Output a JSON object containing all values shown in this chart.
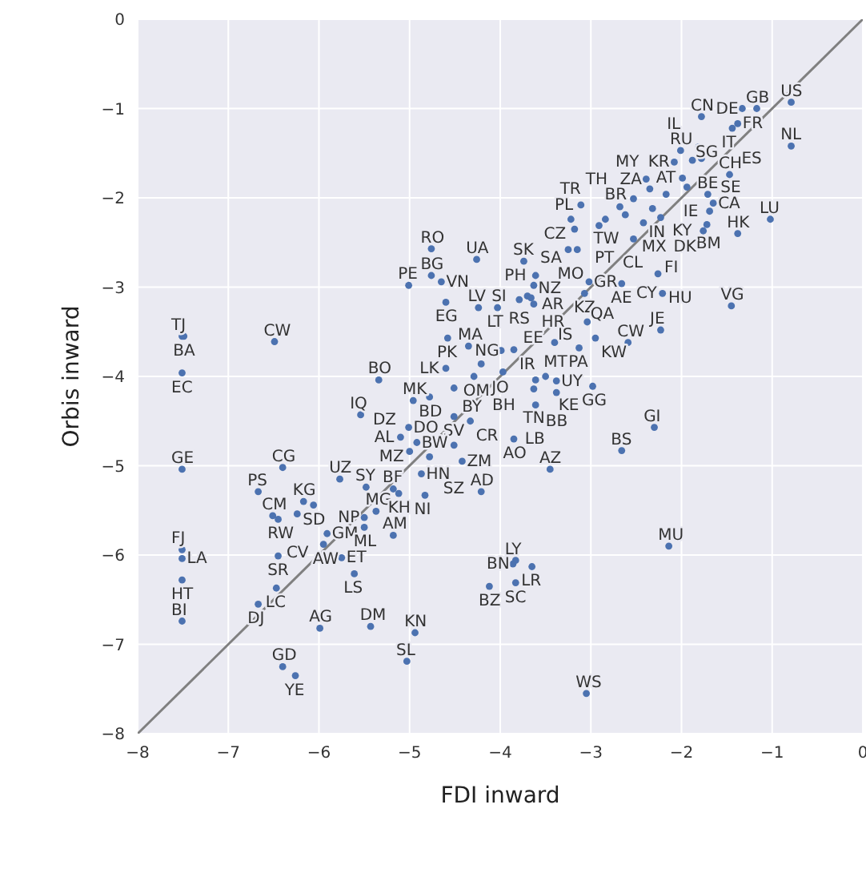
{
  "chart_data": {
    "type": "scatter",
    "xlabel": "FDI inward",
    "ylabel": "Orbis inward",
    "xlim": [
      -8,
      0
    ],
    "ylim": [
      -8,
      0
    ],
    "xticks": [
      -8,
      -7,
      -6,
      -5,
      -4,
      -3,
      -2,
      -1,
      0
    ],
    "yticks": [
      -8,
      -7,
      -6,
      -5,
      -4,
      -3,
      -2,
      -1,
      0
    ],
    "grid": true,
    "legend": false,
    "series": [
      {
        "type": "scatter",
        "marker": "circle",
        "color": "#4c72b0",
        "x": [
          -0.79,
          -1.17,
          -1.33,
          -1.78,
          -1.38,
          -1.44,
          -0.79,
          -1.47,
          -1.02,
          -1.38,
          -1.71,
          -1.65,
          -1.69,
          -1.72,
          -1.76,
          -2.01,
          -1.81,
          -2.08,
          -1.88,
          -1.78,
          -1.99,
          -1.94,
          -2.39,
          -2.35,
          -2.17,
          -2.53,
          -2.32,
          -2.68,
          -2.62,
          -2.84,
          -2.42,
          -2.23,
          -2.53,
          -2.66,
          -2.26,
          -2.21,
          -1.45,
          -2.23,
          -2.59,
          -3.11,
          -3.22,
          -3.18,
          -2.91,
          -3.25,
          -3.15,
          -3.02,
          -3.07,
          -3.74,
          -3.61,
          -4.26,
          -4.76,
          -4.76,
          -4.65,
          -5.01,
          -4.6,
          -4.24,
          -4.03,
          -3.79,
          -3.7,
          -3.63,
          -3.66,
          -3.63,
          -4.58,
          -4.35,
          -3.99,
          -3.85,
          -4.21,
          -4.6,
          -4.29,
          -3.97,
          -3.61,
          -3.5,
          -3.63,
          -3.38,
          -3.38,
          -3.61,
          -3.4,
          -3.13,
          -2.95,
          -3.04,
          -2.98,
          -4.51,
          -5.34,
          -2.3,
          -2.66,
          -3.85,
          -3.45,
          -4.21,
          -4.42,
          -2.14,
          -3.83,
          -3.86,
          -3.65,
          -4.12,
          -3.83,
          -3.05,
          -7.51,
          -7.49,
          -6.49,
          -7.51,
          -7.51,
          -7.51,
          -7.51,
          -7.51,
          -7.51,
          -6.4,
          -6.67,
          -5.77,
          -5.48,
          -6.17,
          -6.06,
          -6.51,
          -6.45,
          -6.24,
          -5.91,
          -5.95,
          -5.75,
          -6.45,
          -5.61,
          -6.47,
          -6.67,
          -5.99,
          -5.43,
          -6.4,
          -6.26,
          -4.94,
          -5.03,
          -5.5,
          -5.37,
          -5.5,
          -5.18,
          -4.83,
          -5.12,
          -5.18,
          -4.87,
          -5.54,
          -4.96,
          -4.78,
          -4.51,
          -4.33,
          -5.1,
          -5.01,
          -4.92,
          -4.51,
          -4.78,
          -5.0
        ],
        "values": [
          -0.93,
          -1.0,
          -1.0,
          -1.09,
          -1.17,
          -1.22,
          -1.42,
          -1.74,
          -2.24,
          -2.4,
          -1.96,
          -2.06,
          -2.15,
          -2.3,
          -2.37,
          -1.47,
          -1.43,
          -1.6,
          -1.58,
          -1.56,
          -1.78,
          -1.88,
          -1.79,
          -1.9,
          -1.96,
          -2.01,
          -2.12,
          -2.1,
          -2.19,
          -2.24,
          -2.28,
          -2.22,
          -2.46,
          -2.96,
          -2.85,
          -3.07,
          -3.21,
          -3.48,
          -3.62,
          -2.08,
          -2.24,
          -2.35,
          -2.31,
          -2.58,
          -2.58,
          -2.94,
          -3.07,
          -2.71,
          -2.87,
          -2.69,
          -2.57,
          -2.87,
          -2.94,
          -2.98,
          -3.17,
          -3.23,
          -3.23,
          -3.14,
          -3.1,
          -2.98,
          -3.12,
          -3.19,
          -3.57,
          -3.66,
          -3.71,
          -3.7,
          -3.86,
          -3.91,
          -4.0,
          -3.95,
          -4.04,
          -4.0,
          -4.14,
          -4.05,
          -4.18,
          -4.32,
          -3.62,
          -3.68,
          -3.57,
          -3.39,
          -4.11,
          -4.13,
          -4.04,
          -4.57,
          -4.83,
          -4.7,
          -5.04,
          -5.29,
          -4.95,
          -5.9,
          -6.06,
          -6.1,
          -6.13,
          -6.35,
          -6.31,
          -7.55,
          -3.55,
          -3.55,
          -3.61,
          -3.96,
          -5.04,
          -5.94,
          -6.04,
          -6.28,
          -6.74,
          -5.02,
          -5.29,
          -5.15,
          -5.24,
          -5.4,
          -5.44,
          -5.56,
          -5.6,
          -5.54,
          -5.76,
          -5.88,
          -6.03,
          -6.01,
          -6.21,
          -6.37,
          -6.55,
          -6.82,
          -6.8,
          -7.25,
          -7.35,
          -6.87,
          -7.19,
          -5.58,
          -5.51,
          -5.69,
          -5.78,
          -5.33,
          -5.31,
          -5.26,
          -5.09,
          -4.43,
          -4.27,
          -4.23,
          -4.45,
          -4.5,
          -4.68,
          -4.57,
          -4.74,
          -4.77,
          -4.9,
          -4.84
        ]
      },
      {
        "type": "line",
        "marker": "none",
        "color": "#808080",
        "x": [
          -8,
          0
        ],
        "values": [
          -8,
          0
        ]
      }
    ],
    "annotations": [
      {
        "text": "US",
        "x": -0.79,
        "y": -0.93
      },
      {
        "text": "GB",
        "x": -1.17,
        "y": -1.0
      },
      {
        "text": "DE",
        "x": -1.33,
        "y": -1.0
      },
      {
        "text": "CN",
        "x": -1.78,
        "y": -1.09
      },
      {
        "text": "FR",
        "x": -1.38,
        "y": -1.17
      },
      {
        "text": "IT",
        "x": -1.44,
        "y": -1.22
      },
      {
        "text": "NL",
        "x": -0.79,
        "y": -1.42
      },
      {
        "text": "CH",
        "x": -1.47,
        "y": -1.74
      },
      {
        "text": "LU",
        "x": -1.02,
        "y": -2.24
      },
      {
        "text": "HK",
        "x": -1.38,
        "y": -2.4
      },
      {
        "text": "BE",
        "x": -1.71,
        "y": -1.96
      },
      {
        "text": "CA",
        "x": -1.65,
        "y": -2.06
      },
      {
        "text": "IE",
        "x": -1.69,
        "y": -2.15
      },
      {
        "text": "BM",
        "x": -1.72,
        "y": -2.3
      },
      {
        "text": "KY",
        "x": -1.76,
        "y": -2.37
      },
      {
        "text": "RU",
        "x": -2.01,
        "y": -1.47
      },
      {
        "text": "IL",
        "x": -1.81,
        "y": -1.43
      },
      {
        "text": "KR",
        "x": -2.08,
        "y": -1.6
      },
      {
        "text": "SG",
        "x": -1.88,
        "y": -1.58
      },
      {
        "text": "ES",
        "x": -1.78,
        "y": -1.56
      },
      {
        "text": "AT",
        "x": -1.99,
        "y": -1.78
      },
      {
        "text": "SE",
        "x": -1.94,
        "y": -1.88
      },
      {
        "text": "ZA",
        "x": -2.39,
        "y": -1.79
      },
      {
        "text": "MY",
        "x": -2.35,
        "y": -1.9
      },
      {
        "text": "BR",
        "x": -2.17,
        "y": -1.96
      },
      {
        "text": "IN",
        "x": -2.53,
        "y": -2.01
      },
      {
        "text": "MX",
        "x": -2.32,
        "y": -2.12
      },
      {
        "text": "TH",
        "x": -2.68,
        "y": -2.1
      },
      {
        "text": "TW",
        "x": -2.62,
        "y": -2.19
      },
      {
        "text": "PT",
        "x": -2.84,
        "y": -2.24
      },
      {
        "text": "FI",
        "x": -2.42,
        "y": -2.28
      },
      {
        "text": "DK",
        "x": -2.23,
        "y": -2.22
      },
      {
        "text": "CL",
        "x": -2.53,
        "y": -2.46
      },
      {
        "text": "AE",
        "x": -2.66,
        "y": -2.96
      },
      {
        "text": "HU",
        "x": -2.26,
        "y": -2.85
      },
      {
        "text": "CY",
        "x": -2.21,
        "y": -3.07
      },
      {
        "text": "VG",
        "x": -1.45,
        "y": -3.21
      },
      {
        "text": "JE",
        "x": -2.23,
        "y": -3.48
      },
      {
        "text": "CW",
        "x": -2.59,
        "y": -3.62
      },
      {
        "text": "PL",
        "x": -3.11,
        "y": -2.08
      },
      {
        "text": "CZ",
        "x": -3.22,
        "y": -2.24
      },
      {
        "text": "SA",
        "x": -3.18,
        "y": -2.35
      },
      {
        "text": "TR",
        "x": -2.91,
        "y": -2.31
      },
      {
        "text": "MO",
        "x": -3.25,
        "y": -2.58
      },
      {
        "text": "NZ",
        "x": -3.15,
        "y": -2.58
      },
      {
        "text": "GR",
        "x": -3.02,
        "y": -2.94
      },
      {
        "text": "KZ",
        "x": -3.07,
        "y": -3.07
      },
      {
        "text": "SK",
        "x": -3.74,
        "y": -2.71
      },
      {
        "text": "PH",
        "x": -3.61,
        "y": -2.87
      },
      {
        "text": "UA",
        "x": -4.26,
        "y": -2.69
      },
      {
        "text": "RO",
        "x": -4.76,
        "y": -2.57
      },
      {
        "text": "BG",
        "x": -4.76,
        "y": -2.87
      },
      {
        "text": "VN",
        "x": -4.65,
        "y": -2.94
      },
      {
        "text": "PE",
        "x": -5.01,
        "y": -2.98
      },
      {
        "text": "EG",
        "x": -4.6,
        "y": -3.17
      },
      {
        "text": "LV",
        "x": -4.24,
        "y": -3.23
      },
      {
        "text": "LT",
        "x": -4.03,
        "y": -3.23
      },
      {
        "text": "RS",
        "x": -3.79,
        "y": -3.14
      },
      {
        "text": "SI",
        "x": -3.7,
        "y": -3.1
      },
      {
        "text": "AR",
        "x": -3.63,
        "y": -2.98
      },
      {
        "text": "HR",
        "x": -3.66,
        "y": -3.12
      },
      {
        "text": "EE",
        "x": -3.63,
        "y": -3.19
      },
      {
        "text": "PK",
        "x": -4.58,
        "y": -3.57
      },
      {
        "text": "MA",
        "x": -4.35,
        "y": -3.66
      },
      {
        "text": "NG",
        "x": -3.99,
        "y": -3.71
      },
      {
        "text": "IR",
        "x": -3.85,
        "y": -3.7
      },
      {
        "text": "JO",
        "x": -4.21,
        "y": -3.86
      },
      {
        "text": "LK",
        "x": -4.6,
        "y": -3.91
      },
      {
        "text": "OM",
        "x": -4.29,
        "y": -4.0
      },
      {
        "text": "BH",
        "x": -3.97,
        "y": -3.95
      },
      {
        "text": "MT",
        "x": -3.61,
        "y": -4.04
      },
      {
        "text": "KE",
        "x": -3.5,
        "y": -4.0
      },
      {
        "text": "TN",
        "x": -3.63,
        "y": -4.14
      },
      {
        "text": "UY",
        "x": -3.38,
        "y": -4.05
      },
      {
        "text": "BB",
        "x": -3.38,
        "y": -4.18
      },
      {
        "text": "LB",
        "x": -3.61,
        "y": -4.32
      },
      {
        "text": "IS",
        "x": -3.4,
        "y": -3.62
      },
      {
        "text": "PA",
        "x": -3.13,
        "y": -3.68
      },
      {
        "text": "KW",
        "x": -2.95,
        "y": -3.57
      },
      {
        "text": "QA",
        "x": -3.04,
        "y": -3.39
      },
      {
        "text": "GG",
        "x": -2.98,
        "y": -4.11
      },
      {
        "text": "BY",
        "x": -4.51,
        "y": -4.13
      },
      {
        "text": "BO",
        "x": -5.34,
        "y": -4.04
      },
      {
        "text": "GI",
        "x": -2.3,
        "y": -4.57
      },
      {
        "text": "BS",
        "x": -2.66,
        "y": -4.83
      },
      {
        "text": "AO",
        "x": -3.85,
        "y": -4.7
      },
      {
        "text": "AZ",
        "x": -3.45,
        "y": -5.04
      },
      {
        "text": "AD",
        "x": -4.21,
        "y": -5.29
      },
      {
        "text": "ZM",
        "x": -4.42,
        "y": -4.95
      },
      {
        "text": "MU",
        "x": -2.14,
        "y": -5.9
      },
      {
        "text": "LY",
        "x": -3.83,
        "y": -6.06
      },
      {
        "text": "BN",
        "x": -3.86,
        "y": -6.1
      },
      {
        "text": "LR",
        "x": -3.65,
        "y": -6.13
      },
      {
        "text": "BZ",
        "x": -4.12,
        "y": -6.35
      },
      {
        "text": "SC",
        "x": -3.83,
        "y": -6.31
      },
      {
        "text": "WS",
        "x": -3.05,
        "y": -7.55
      },
      {
        "text": "TJ",
        "x": -7.51,
        "y": -3.55
      },
      {
        "text": "BA",
        "x": -7.49,
        "y": -3.55
      },
      {
        "text": "CW",
        "x": -6.49,
        "y": -3.61
      },
      {
        "text": "EC",
        "x": -7.51,
        "y": -3.96
      },
      {
        "text": "GE",
        "x": -7.51,
        "y": -5.04
      },
      {
        "text": "FJ",
        "x": -7.51,
        "y": -5.94
      },
      {
        "text": "LA",
        "x": -7.51,
        "y": -6.04
      },
      {
        "text": "HT",
        "x": -7.51,
        "y": -6.28
      },
      {
        "text": "BI",
        "x": -7.51,
        "y": -6.74
      },
      {
        "text": "CG",
        "x": -6.4,
        "y": -5.02
      },
      {
        "text": "PS",
        "x": -6.67,
        "y": -5.29
      },
      {
        "text": "UZ",
        "x": -5.77,
        "y": -5.15
      },
      {
        "text": "SY",
        "x": -5.48,
        "y": -5.24
      },
      {
        "text": "KG",
        "x": -6.17,
        "y": -5.4
      },
      {
        "text": "SD",
        "x": -6.06,
        "y": -5.44
      },
      {
        "text": "CM",
        "x": -6.51,
        "y": -5.56
      },
      {
        "text": "RW",
        "x": -6.45,
        "y": -5.6
      },
      {
        "text": "CV",
        "x": -6.24,
        "y": -5.54
      },
      {
        "text": "GM",
        "x": -5.91,
        "y": -5.76
      },
      {
        "text": "AW",
        "x": -5.95,
        "y": -5.88
      },
      {
        "text": "ET",
        "x": -5.75,
        "y": -6.03
      },
      {
        "text": "SR",
        "x": -6.45,
        "y": -6.01
      },
      {
        "text": "LS",
        "x": -5.61,
        "y": -6.21
      },
      {
        "text": "LC",
        "x": -6.47,
        "y": -6.37
      },
      {
        "text": "DJ",
        "x": -6.67,
        "y": -6.55
      },
      {
        "text": "AG",
        "x": -5.99,
        "y": -6.82
      },
      {
        "text": "DM",
        "x": -5.43,
        "y": -6.8
      },
      {
        "text": "GD",
        "x": -6.4,
        "y": -7.25
      },
      {
        "text": "YE",
        "x": -6.26,
        "y": -7.35
      },
      {
        "text": "KN",
        "x": -4.94,
        "y": -6.87
      },
      {
        "text": "SL",
        "x": -5.03,
        "y": -7.19
      },
      {
        "text": "NP",
        "x": -5.5,
        "y": -5.58
      },
      {
        "text": "MG",
        "x": -5.37,
        "y": -5.51
      },
      {
        "text": "ML",
        "x": -5.5,
        "y": -5.69
      },
      {
        "text": "AM",
        "x": -5.18,
        "y": -5.78
      },
      {
        "text": "NI",
        "x": -4.83,
        "y": -5.33
      },
      {
        "text": "KH",
        "x": -5.12,
        "y": -5.31
      },
      {
        "text": "BF",
        "x": -5.18,
        "y": -5.26
      },
      {
        "text": "HN",
        "x": -4.87,
        "y": -5.09
      },
      {
        "text": "IQ",
        "x": -5.54,
        "y": -4.43
      },
      {
        "text": "MK",
        "x": -4.96,
        "y": -4.27
      },
      {
        "text": "BD",
        "x": -4.78,
        "y": -4.23
      },
      {
        "text": "SV",
        "x": -4.51,
        "y": -4.45
      },
      {
        "text": "CR",
        "x": -4.33,
        "y": -4.5
      },
      {
        "text": "AL",
        "x": -5.1,
        "y": -4.68
      },
      {
        "text": "DO",
        "x": -5.01,
        "y": -4.57
      },
      {
        "text": "BW",
        "x": -4.92,
        "y": -4.74
      },
      {
        "text": "SZ",
        "x": -4.51,
        "y": -4.77
      },
      {
        "text": "MZ",
        "x": -4.78,
        "y": -4.9
      },
      {
        "text": "DZ",
        "x": -5.0,
        "y": -4.84
      }
    ]
  }
}
